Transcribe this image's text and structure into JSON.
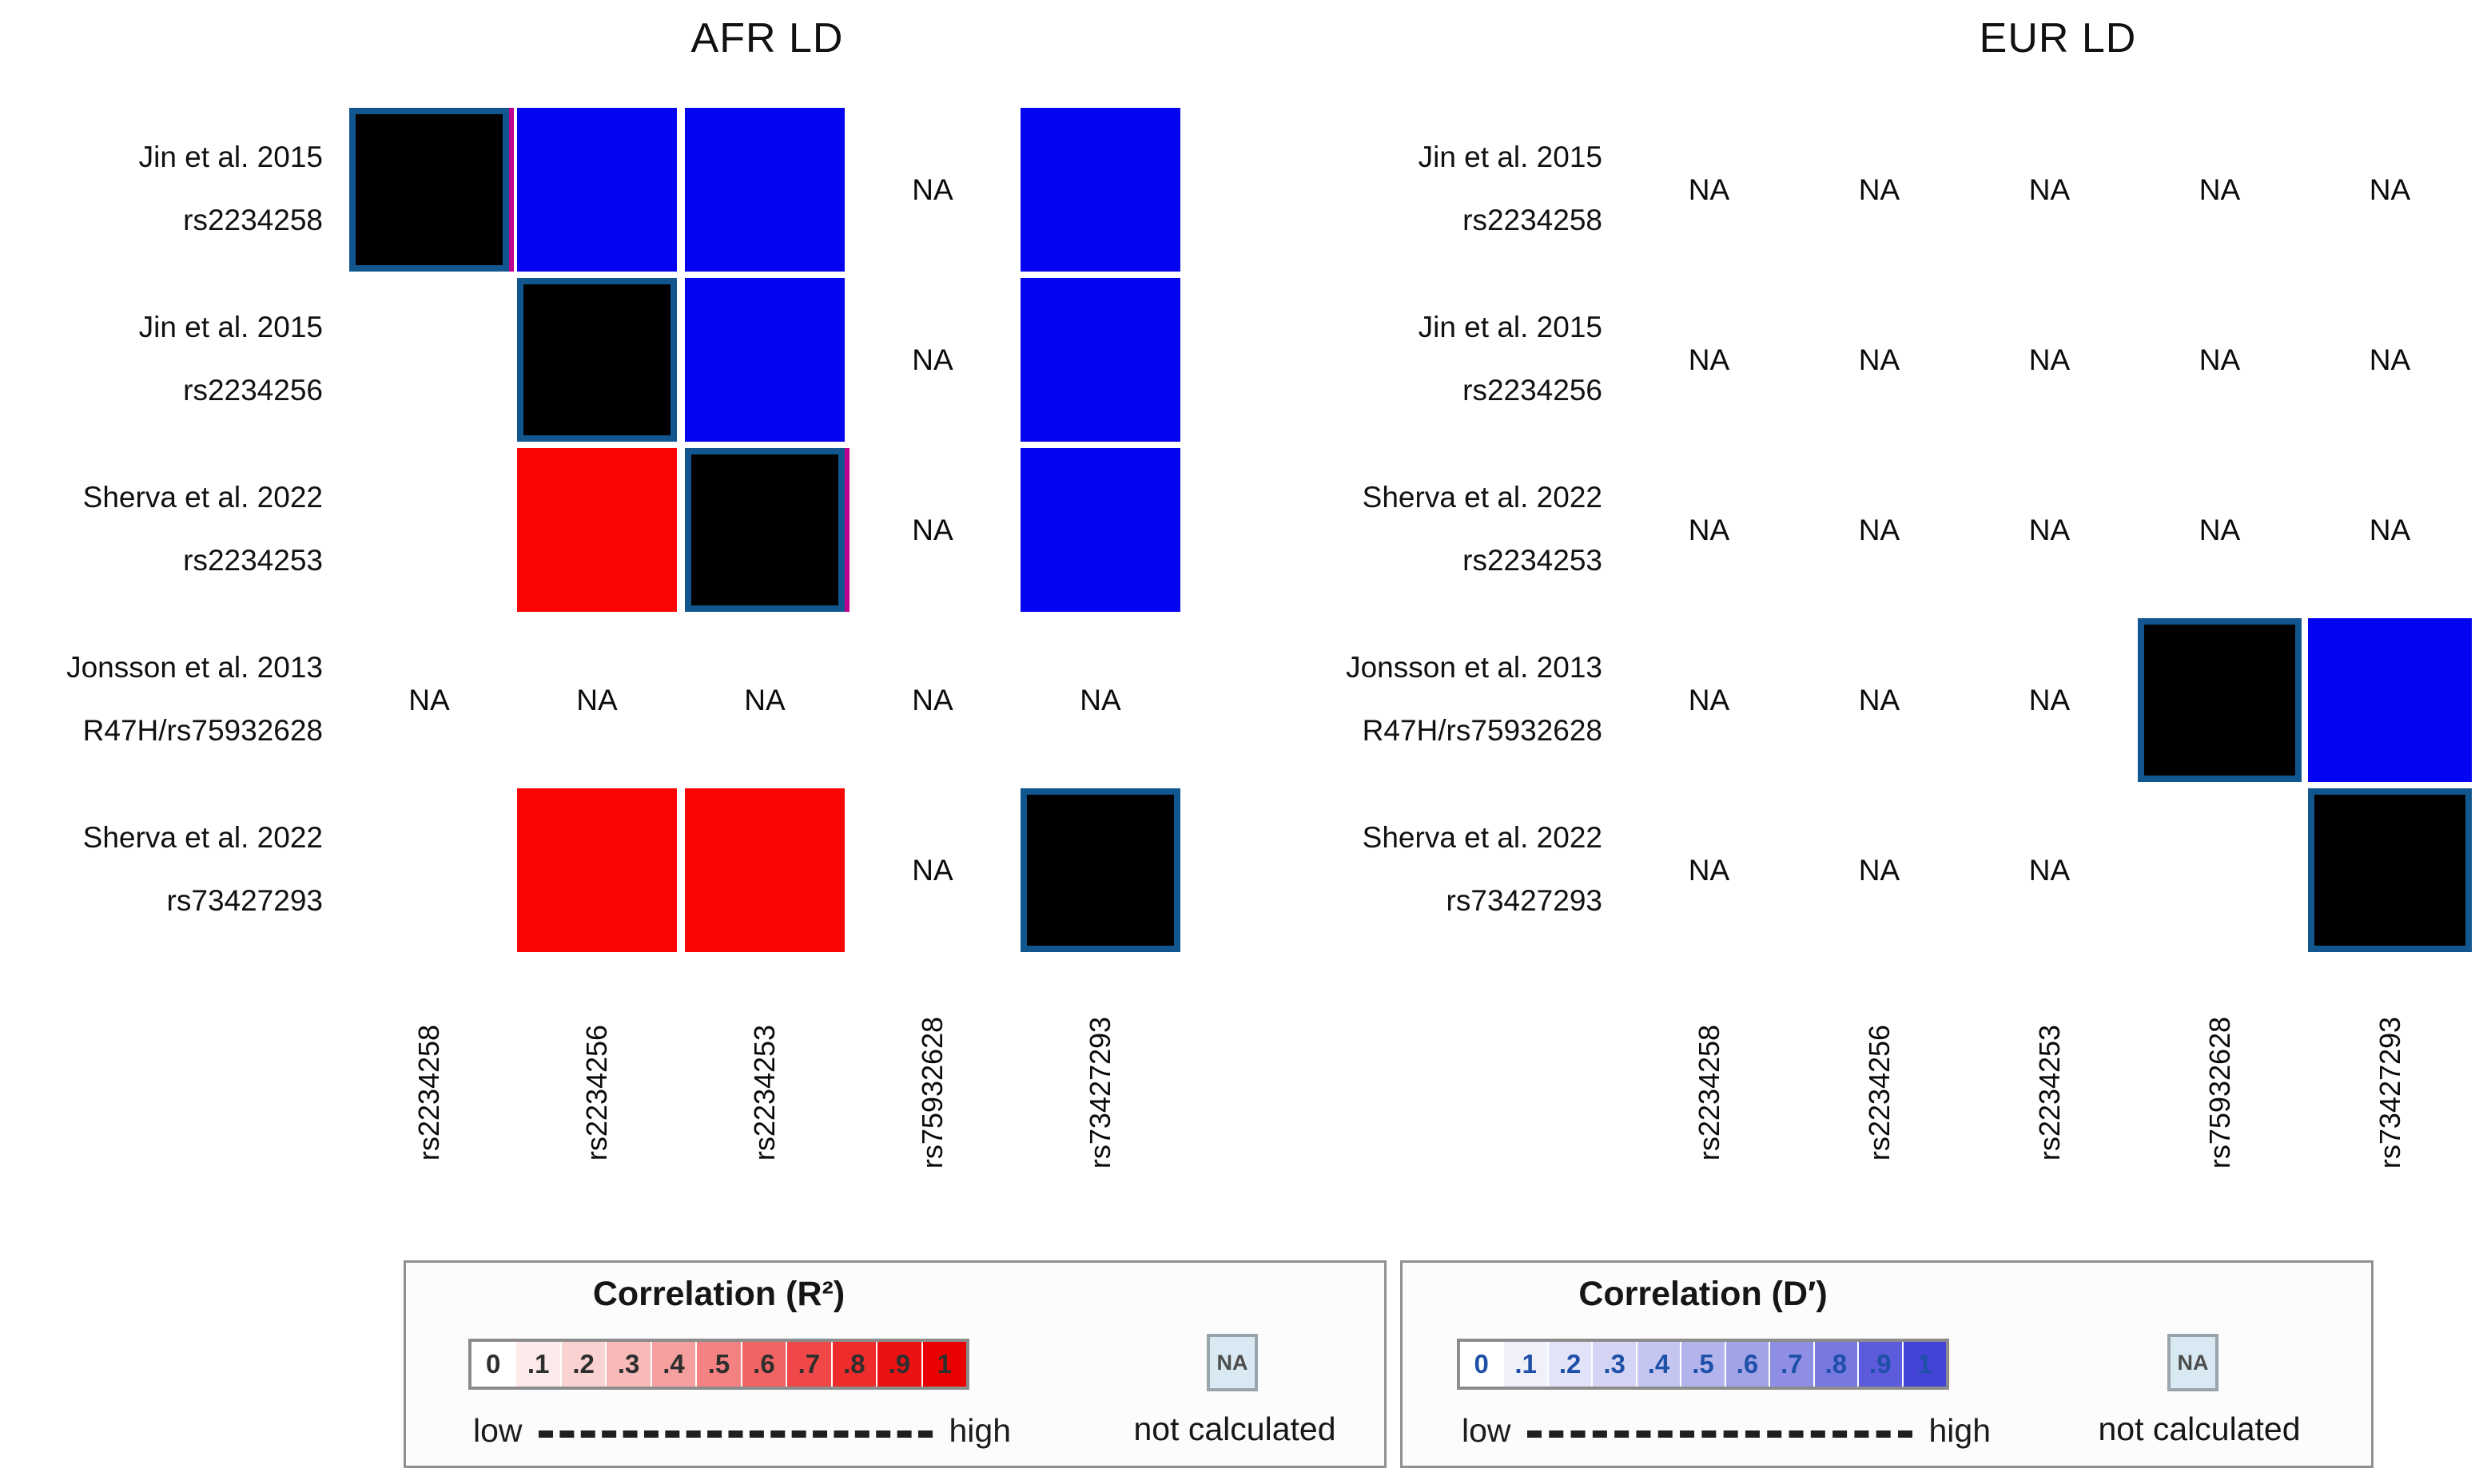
{
  "figure": {
    "na_label": "NA",
    "colors": {
      "blue": "#0404f0",
      "red": "#fb0404",
      "black": "#000000",
      "diag_border": "#11568f",
      "magenta": "#c0008f",
      "na_box_bg": "#d9e9f4",
      "na_box_border": "#9aa4ab"
    },
    "panels": [
      {
        "title": "AFR LD",
        "rows": [
          {
            "study": "Jin et al. 2015",
            "snp": "rs2234258"
          },
          {
            "study": "Jin et al. 2015",
            "snp": "rs2234256"
          },
          {
            "study": "Sherva et al. 2022",
            "snp": "rs2234253"
          },
          {
            "study": "Jonsson et al. 2013",
            "snp": "R47H/rs75932628"
          },
          {
            "study": "Sherva et al. 2022",
            "snp": "rs73427293"
          }
        ],
        "cols": [
          "rs2234258",
          "rs2234256",
          "rs2234253",
          "rs75932628",
          "rs73427293"
        ],
        "grid": [
          [
            "DM",
            "B",
            "B",
            "NA",
            "B"
          ],
          [
            "",
            "D",
            "B",
            "NA",
            "B"
          ],
          [
            "",
            "R",
            "DM",
            "NA",
            "B"
          ],
          [
            "NA",
            "NA",
            "NA",
            "NA",
            "NA"
          ],
          [
            "",
            "R",
            "R",
            "NA",
            "D"
          ]
        ]
      },
      {
        "title": "EUR LD",
        "rows": [
          {
            "study": "Jin et al. 2015",
            "snp": "rs2234258"
          },
          {
            "study": "Jin et al. 2015",
            "snp": "rs2234256"
          },
          {
            "study": "Sherva et al. 2022",
            "snp": "rs2234253"
          },
          {
            "study": "Jonsson et al. 2013",
            "snp": "R47H/rs75932628"
          },
          {
            "study": "Sherva et al. 2022",
            "snp": "rs73427293"
          }
        ],
        "cols": [
          "rs2234258",
          "rs2234256",
          "rs2234253",
          "rs75932628",
          "rs73427293"
        ],
        "grid": [
          [
            "NA",
            "NA",
            "NA",
            "NA",
            "NA"
          ],
          [
            "NA",
            "NA",
            "NA",
            "NA",
            "NA"
          ],
          [
            "NA",
            "NA",
            "NA",
            "NA",
            "NA"
          ],
          [
            "NA",
            "NA",
            "NA",
            "D",
            "B"
          ],
          [
            "NA",
            "NA",
            "NA",
            "",
            "D"
          ]
        ]
      }
    ],
    "legends": [
      {
        "title": "Correlation (R²)",
        "scale_labels": [
          "0",
          ".1",
          ".2",
          ".3",
          ".4",
          ".5",
          ".6",
          ".7",
          ".8",
          ".9",
          "1"
        ],
        "scale_colors": [
          "#ffffff",
          "#fce9e9",
          "#fad2d2",
          "#f8b9b9",
          "#f69f9f",
          "#f48282",
          "#f26464",
          "#f04848",
          "#ee2c2c",
          "#ec1212",
          "#ea0000"
        ],
        "digit_color": "#2e2e2e",
        "low": "low",
        "high": "high",
        "na": "NA",
        "note": "not calculated"
      },
      {
        "title": "Correlation (D′)",
        "scale_labels": [
          "0",
          ".1",
          ".2",
          ".3",
          ".4",
          ".5",
          ".6",
          ".7",
          ".8",
          ".9",
          "1"
        ],
        "scale_colors": [
          "#ffffff",
          "#f0f0fb",
          "#e2e2f8",
          "#d4d4f4",
          "#c5c5f1",
          "#b4b4ed",
          "#a2a2e9",
          "#8e8ee5",
          "#7878e1",
          "#5b5bdc",
          "#4343d8"
        ],
        "digit_color": "#1e50a8",
        "low": "low",
        "high": "high",
        "na": "NA",
        "note": "not calculated"
      }
    ]
  },
  "chart_data": {
    "type": "heatmap",
    "value_legend": {
      "self": "diagonal / same variant (black square, blue outline)",
      "high-Dprime": "D' = 1 (high, solid blue square)",
      "high-R2": "R² = 1 (high, solid red square)",
      "NA": "not calculated",
      "null": "no comparison shown"
    },
    "charts": [
      {
        "title": "AFR LD",
        "row_labels": [
          "Jin et al. 2015 rs2234258",
          "Jin et al. 2015 rs2234256",
          "Sherva et al. 2022 rs2234253",
          "Jonsson et al. 2013 R47H/rs75932628",
          "Sherva et al. 2022 rs73427293"
        ],
        "col_labels": [
          "rs2234258",
          "rs2234256",
          "rs2234253",
          "rs75932628",
          "rs73427293"
        ],
        "values": [
          [
            "self",
            "high-Dprime",
            "high-Dprime",
            "NA",
            "high-Dprime"
          ],
          [
            null,
            "self",
            "high-Dprime",
            "NA",
            "high-Dprime"
          ],
          [
            null,
            "high-R2",
            "self",
            "NA",
            "high-Dprime"
          ],
          [
            "NA",
            "NA",
            "NA",
            "NA",
            "NA"
          ],
          [
            null,
            "high-R2",
            "high-R2",
            "NA",
            "self"
          ]
        ]
      },
      {
        "title": "EUR LD",
        "row_labels": [
          "Jin et al. 2015 rs2234258",
          "Jin et al. 2015 rs2234256",
          "Sherva et al. 2022 rs2234253",
          "Jonsson et al. 2013 R47H/rs75932628",
          "Sherva et al. 2022 rs73427293"
        ],
        "col_labels": [
          "rs2234258",
          "rs2234256",
          "rs2234253",
          "rs75932628",
          "rs73427293"
        ],
        "values": [
          [
            "NA",
            "NA",
            "NA",
            "NA",
            "NA"
          ],
          [
            "NA",
            "NA",
            "NA",
            "NA",
            "NA"
          ],
          [
            "NA",
            "NA",
            "NA",
            "NA",
            "NA"
          ],
          [
            "NA",
            "NA",
            "NA",
            "self",
            "high-Dprime"
          ],
          [
            "NA",
            "NA",
            "NA",
            null,
            "self"
          ]
        ]
      }
    ]
  }
}
